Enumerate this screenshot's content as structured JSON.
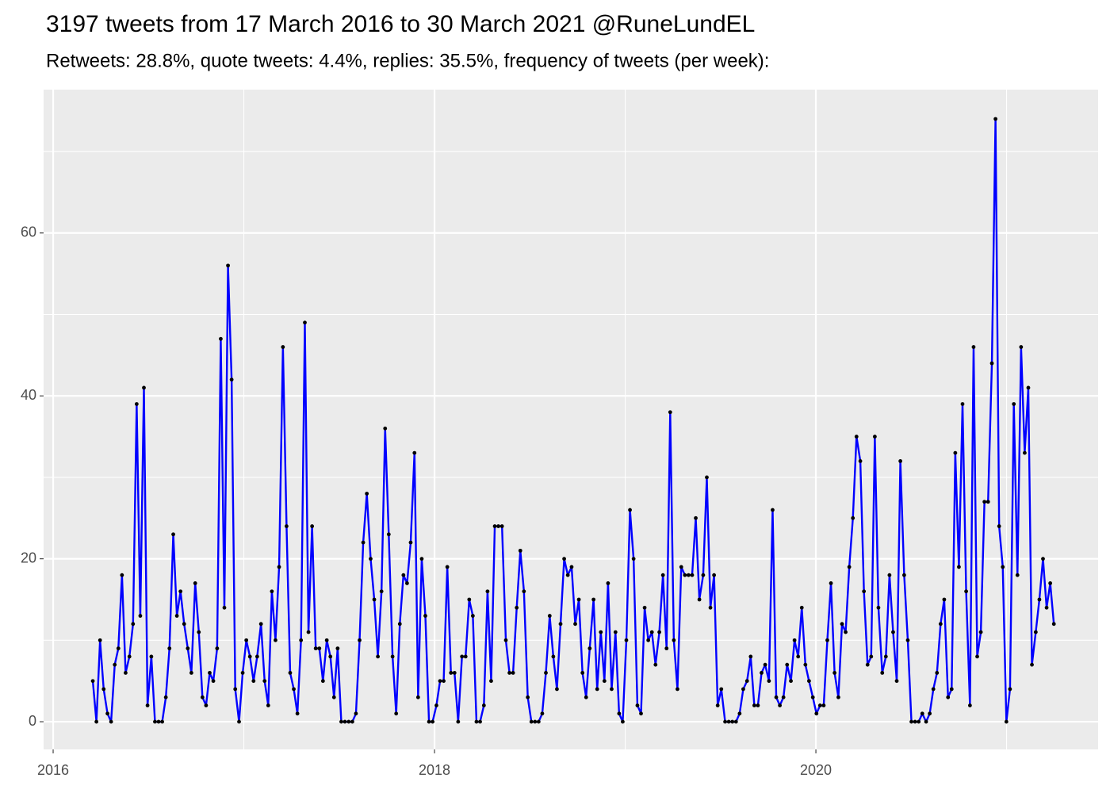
{
  "chart_data": {
    "type": "line",
    "title": "3197 tweets from 17 March 2016 to 30 March 2021 @RuneLundEL",
    "subtitle": "Retweets: 28.8%, quote tweets: 4.4%, replies: 35.5%, frequency of tweets (per week):",
    "color": "#0000ff",
    "point_color": "#000000",
    "grid": true,
    "xlim": [
      2015.95,
      2021.48
    ],
    "xticks": [
      2016,
      2018,
      2020
    ],
    "ylim": [
      -3.4,
      77.6
    ],
    "yticks": [
      0,
      20,
      40,
      60
    ],
    "x": [
      2016.208,
      2016.227,
      2016.246,
      2016.265,
      2016.285,
      2016.304,
      2016.323,
      2016.342,
      2016.361,
      2016.38,
      2016.4,
      2016.419,
      2016.438,
      2016.457,
      2016.476,
      2016.495,
      2016.515,
      2016.534,
      2016.553,
      2016.572,
      2016.591,
      2016.61,
      2016.63,
      2016.649,
      2016.668,
      2016.687,
      2016.706,
      2016.725,
      2016.745,
      2016.764,
      2016.783,
      2016.802,
      2016.821,
      2016.84,
      2016.86,
      2016.879,
      2016.898,
      2016.917,
      2016.936,
      2016.955,
      2016.975,
      2016.994,
      2017.013,
      2017.032,
      2017.051,
      2017.07,
      2017.09,
      2017.109,
      2017.128,
      2017.147,
      2017.166,
      2017.185,
      2017.205,
      2017.224,
      2017.243,
      2017.262,
      2017.281,
      2017.3,
      2017.32,
      2017.339,
      2017.358,
      2017.377,
      2017.396,
      2017.415,
      2017.435,
      2017.454,
      2017.473,
      2017.492,
      2017.511,
      2017.53,
      2017.55,
      2017.569,
      2017.588,
      2017.607,
      2017.626,
      2017.645,
      2017.665,
      2017.684,
      2017.703,
      2017.722,
      2017.741,
      2017.76,
      2017.78,
      2017.799,
      2017.818,
      2017.837,
      2017.856,
      2017.875,
      2017.895,
      2017.914,
      2017.933,
      2017.952,
      2017.971,
      2017.99,
      2018.01,
      2018.029,
      2018.048,
      2018.067,
      2018.086,
      2018.105,
      2018.124,
      2018.144,
      2018.163,
      2018.182,
      2018.201,
      2018.22,
      2018.239,
      2018.259,
      2018.278,
      2018.297,
      2018.316,
      2018.335,
      2018.354,
      2018.374,
      2018.393,
      2018.412,
      2018.431,
      2018.45,
      2018.469,
      2018.489,
      2018.508,
      2018.527,
      2018.546,
      2018.565,
      2018.584,
      2018.604,
      2018.623,
      2018.642,
      2018.661,
      2018.68,
      2018.699,
      2018.719,
      2018.738,
      2018.757,
      2018.776,
      2018.795,
      2018.814,
      2018.834,
      2018.853,
      2018.872,
      2018.891,
      2018.91,
      2018.929,
      2018.949,
      2018.968,
      2018.987,
      2019.006,
      2019.025,
      2019.044,
      2019.064,
      2019.083,
      2019.102,
      2019.121,
      2019.14,
      2019.159,
      2019.179,
      2019.198,
      2019.217,
      2019.236,
      2019.255,
      2019.274,
      2019.294,
      2019.313,
      2019.332,
      2019.351,
      2019.37,
      2019.389,
      2019.409,
      2019.428,
      2019.447,
      2019.466,
      2019.485,
      2019.504,
      2019.524,
      2019.543,
      2019.562,
      2019.581,
      2019.6,
      2019.619,
      2019.639,
      2019.658,
      2019.677,
      2019.696,
      2019.715,
      2019.734,
      2019.754,
      2019.773,
      2019.792,
      2019.811,
      2019.83,
      2019.849,
      2019.869,
      2019.888,
      2019.907,
      2019.926,
      2019.945,
      2019.964,
      2019.984,
      2020.003,
      2020.022,
      2020.041,
      2020.06,
      2020.079,
      2020.098,
      2020.118,
      2020.137,
      2020.156,
      2020.175,
      2020.194,
      2020.213,
      2020.233,
      2020.252,
      2020.271,
      2020.29,
      2020.309,
      2020.328,
      2020.348,
      2020.367,
      2020.386,
      2020.405,
      2020.424,
      2020.443,
      2020.463,
      2020.482,
      2020.501,
      2020.52,
      2020.539,
      2020.558,
      2020.578,
      2020.597,
      2020.616,
      2020.635,
      2020.654,
      2020.673,
      2020.693,
      2020.712,
      2020.731,
      2020.75,
      2020.769,
      2020.788,
      2020.808,
      2020.827,
      2020.846,
      2020.865,
      2020.884,
      2020.903,
      2020.923,
      2020.942,
      2020.961,
      2020.98,
      2020.999,
      2021.018,
      2021.038,
      2021.057,
      2021.076,
      2021.095,
      2021.114,
      2021.133,
      2021.153,
      2021.172,
      2021.191,
      2021.21,
      2021.229,
      2021.248
    ],
    "values": [
      5,
      0,
      10,
      4,
      1,
      0,
      7,
      9,
      18,
      6,
      8,
      12,
      39,
      13,
      41,
      2,
      8,
      0,
      0,
      0,
      3,
      9,
      23,
      13,
      16,
      12,
      9,
      6,
      17,
      11,
      3,
      2,
      6,
      5,
      9,
      47,
      14,
      56,
      42,
      4,
      0,
      6,
      10,
      8,
      5,
      8,
      12,
      5,
      2,
      16,
      10,
      19,
      46,
      24,
      6,
      4,
      1,
      10,
      49,
      11,
      24,
      9,
      9,
      5,
      10,
      8,
      3,
      9,
      0,
      0,
      0,
      0,
      1,
      10,
      22,
      28,
      20,
      15,
      8,
      16,
      36,
      23,
      8,
      1,
      12,
      18,
      17,
      22,
      33,
      3,
      20,
      13,
      0,
      0,
      2,
      5,
      5,
      19,
      6,
      6,
      0,
      8,
      8,
      15,
      13,
      0,
      0,
      2,
      16,
      5,
      24,
      24,
      24,
      10,
      6,
      6,
      14,
      21,
      16,
      3,
      0,
      0,
      0,
      1,
      6,
      13,
      8,
      4,
      12,
      20,
      18,
      19,
      12,
      15,
      6,
      3,
      9,
      15,
      4,
      11,
      5,
      17,
      4,
      11,
      1,
      0,
      10,
      26,
      20,
      2,
      1,
      14,
      10,
      11,
      7,
      11,
      18,
      9,
      38,
      10,
      4,
      19,
      18,
      18,
      18,
      25,
      15,
      18,
      30,
      14,
      18,
      2,
      4,
      0,
      0,
      0,
      0,
      1,
      4,
      5,
      8,
      2,
      2,
      6,
      7,
      5,
      26,
      3,
      2,
      3,
      7,
      5,
      10,
      8,
      14,
      7,
      5,
      3,
      1,
      2,
      2,
      10,
      17,
      6,
      3,
      12,
      11,
      19,
      25,
      35,
      32,
      16,
      7,
      8,
      35,
      14,
      6,
      8,
      18,
      11,
      5,
      32,
      18,
      10,
      0,
      0,
      0,
      1,
      0,
      1,
      4,
      6,
      12,
      15,
      3,
      4,
      33,
      19,
      39,
      16,
      2,
      46,
      8,
      11,
      27,
      27,
      44,
      74,
      24,
      19,
      0,
      4,
      39,
      18,
      46,
      33,
      41,
      7,
      11,
      15,
      20,
      14,
      17,
      12
    ]
  }
}
